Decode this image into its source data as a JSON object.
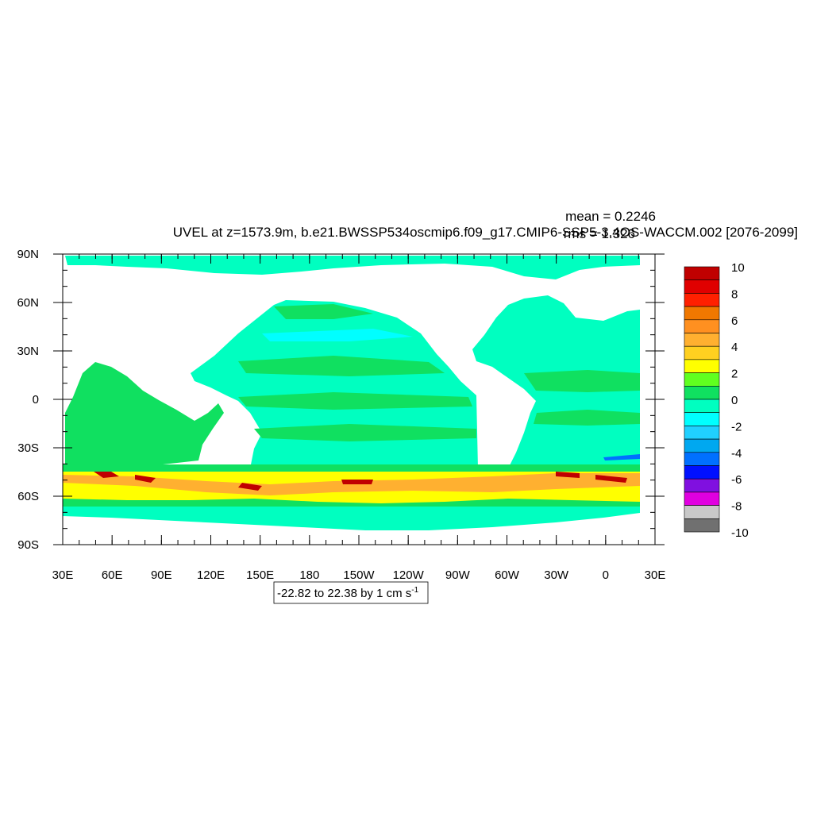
{
  "figure": {
    "title": "UVEL at z=1573.9m, b.e21.BWSSP534oscmip6.f09_g17.CMIP6-SSP5-3.4OS-WACCM.002 [2076-2099]",
    "mean_text": "mean = 0.2246",
    "rms_text": "rms = 1.326",
    "contour_info": "-22.82 to 22.38 by 1 cm s",
    "contour_info_exp": "-1"
  },
  "chart_data": {
    "type": "heatmap",
    "variable": "UVEL",
    "units": "cm s-1",
    "depth": "z=1573.9m",
    "mean": 0.2246,
    "rms": 1.326,
    "contour_min": -22.82,
    "contour_max": 22.38,
    "contour_interval": 1,
    "xlim": [
      30,
      390
    ],
    "ylim": [
      -90,
      90
    ],
    "x_ticks": [
      {
        "lon": 30,
        "label": "30E"
      },
      {
        "lon": 60,
        "label": "60E"
      },
      {
        "lon": 90,
        "label": "90E"
      },
      {
        "lon": 120,
        "label": "120E"
      },
      {
        "lon": 150,
        "label": "150E"
      },
      {
        "lon": 180,
        "label": "180"
      },
      {
        "lon": 210,
        "label": "150W"
      },
      {
        "lon": 240,
        "label": "120W"
      },
      {
        "lon": 270,
        "label": "90W"
      },
      {
        "lon": 300,
        "label": "60W"
      },
      {
        "lon": 330,
        "label": "30W"
      },
      {
        "lon": 360,
        "label": "0"
      },
      {
        "lon": 390,
        "label": "30E"
      }
    ],
    "y_ticks": [
      {
        "lat": 90,
        "label": "90N"
      },
      {
        "lat": 60,
        "label": "60N"
      },
      {
        "lat": 30,
        "label": "30N"
      },
      {
        "lat": 0,
        "label": "0"
      },
      {
        "lat": -30,
        "label": "30S"
      },
      {
        "lat": -60,
        "label": "60S"
      },
      {
        "lat": -90,
        "label": "90S"
      }
    ],
    "colorbar": {
      "levels": [
        -10,
        -9,
        -8,
        -7,
        -6,
        -5,
        -4,
        -3,
        -2,
        -1,
        0,
        1,
        2,
        3,
        4,
        5,
        6,
        7,
        8,
        9,
        10
      ],
      "labeled_levels": [
        10,
        8,
        6,
        4,
        2,
        0,
        -2,
        -4,
        -6,
        -8,
        -10
      ],
      "colors_top_to_bottom": [
        "#c00000",
        "#e00000",
        "#ff2000",
        "#f07800",
        "#ff9020",
        "#ffb030",
        "#ffd020",
        "#ffff00",
        "#60ff20",
        "#10e060",
        "#00ffc0",
        "#00ffff",
        "#20d0ff",
        "#00a8f0",
        "#0070ff",
        "#0010ff",
        "#8010e0",
        "#e000e0",
        "#c8c8c8",
        "#707070"
      ]
    }
  }
}
